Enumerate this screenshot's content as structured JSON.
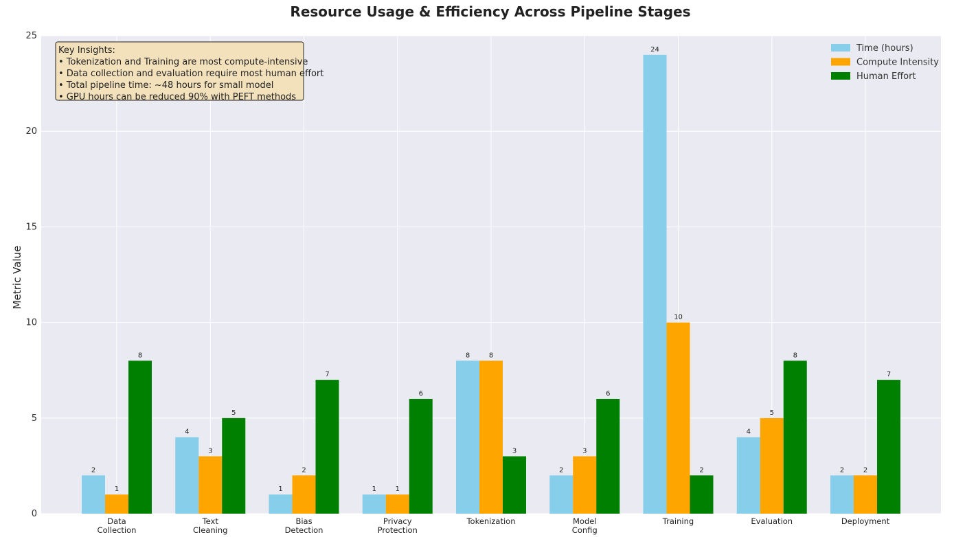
{
  "chart_data": {
    "type": "bar",
    "title": "Resource Usage & Efficiency Across Pipeline Stages",
    "xlabel": "",
    "ylabel": "Metric Value",
    "ylim": [
      0,
      25
    ],
    "yticks": [
      0,
      5,
      10,
      15,
      20,
      25
    ],
    "grid": true,
    "legend_position": "top-right",
    "categories": [
      [
        "Data",
        "Collection"
      ],
      [
        "Text",
        "Cleaning"
      ],
      [
        "Bias",
        "Detection"
      ],
      [
        "Privacy",
        "Protection"
      ],
      [
        "Tokenization"
      ],
      [
        "Model",
        "Config"
      ],
      [
        "Training"
      ],
      [
        "Evaluation"
      ],
      [
        "Deployment"
      ]
    ],
    "series": [
      {
        "name": "Time (hours)",
        "color": "#87CEEB",
        "values": [
          2,
          4,
          1,
          1,
          8,
          2,
          24,
          4,
          2
        ]
      },
      {
        "name": "Compute Intensity",
        "color": "#FFA500",
        "values": [
          1,
          3,
          2,
          1,
          8,
          3,
          10,
          5,
          2
        ]
      },
      {
        "name": "Human Effort",
        "color": "#008000",
        "values": [
          8,
          5,
          7,
          6,
          3,
          6,
          2,
          8,
          7
        ]
      }
    ],
    "annotation": {
      "lines": [
        "Key Insights:",
        "• Tokenization and Training are most compute-intensive",
        "• Data collection and evaluation require most human effort",
        "• Total pipeline time: ~48 hours for small model",
        "• GPU hours can be reduced 90% with PEFT methods"
      ],
      "background": "#F3E1BC",
      "border": "#222222"
    },
    "plot_background": "#EAEAF2"
  }
}
